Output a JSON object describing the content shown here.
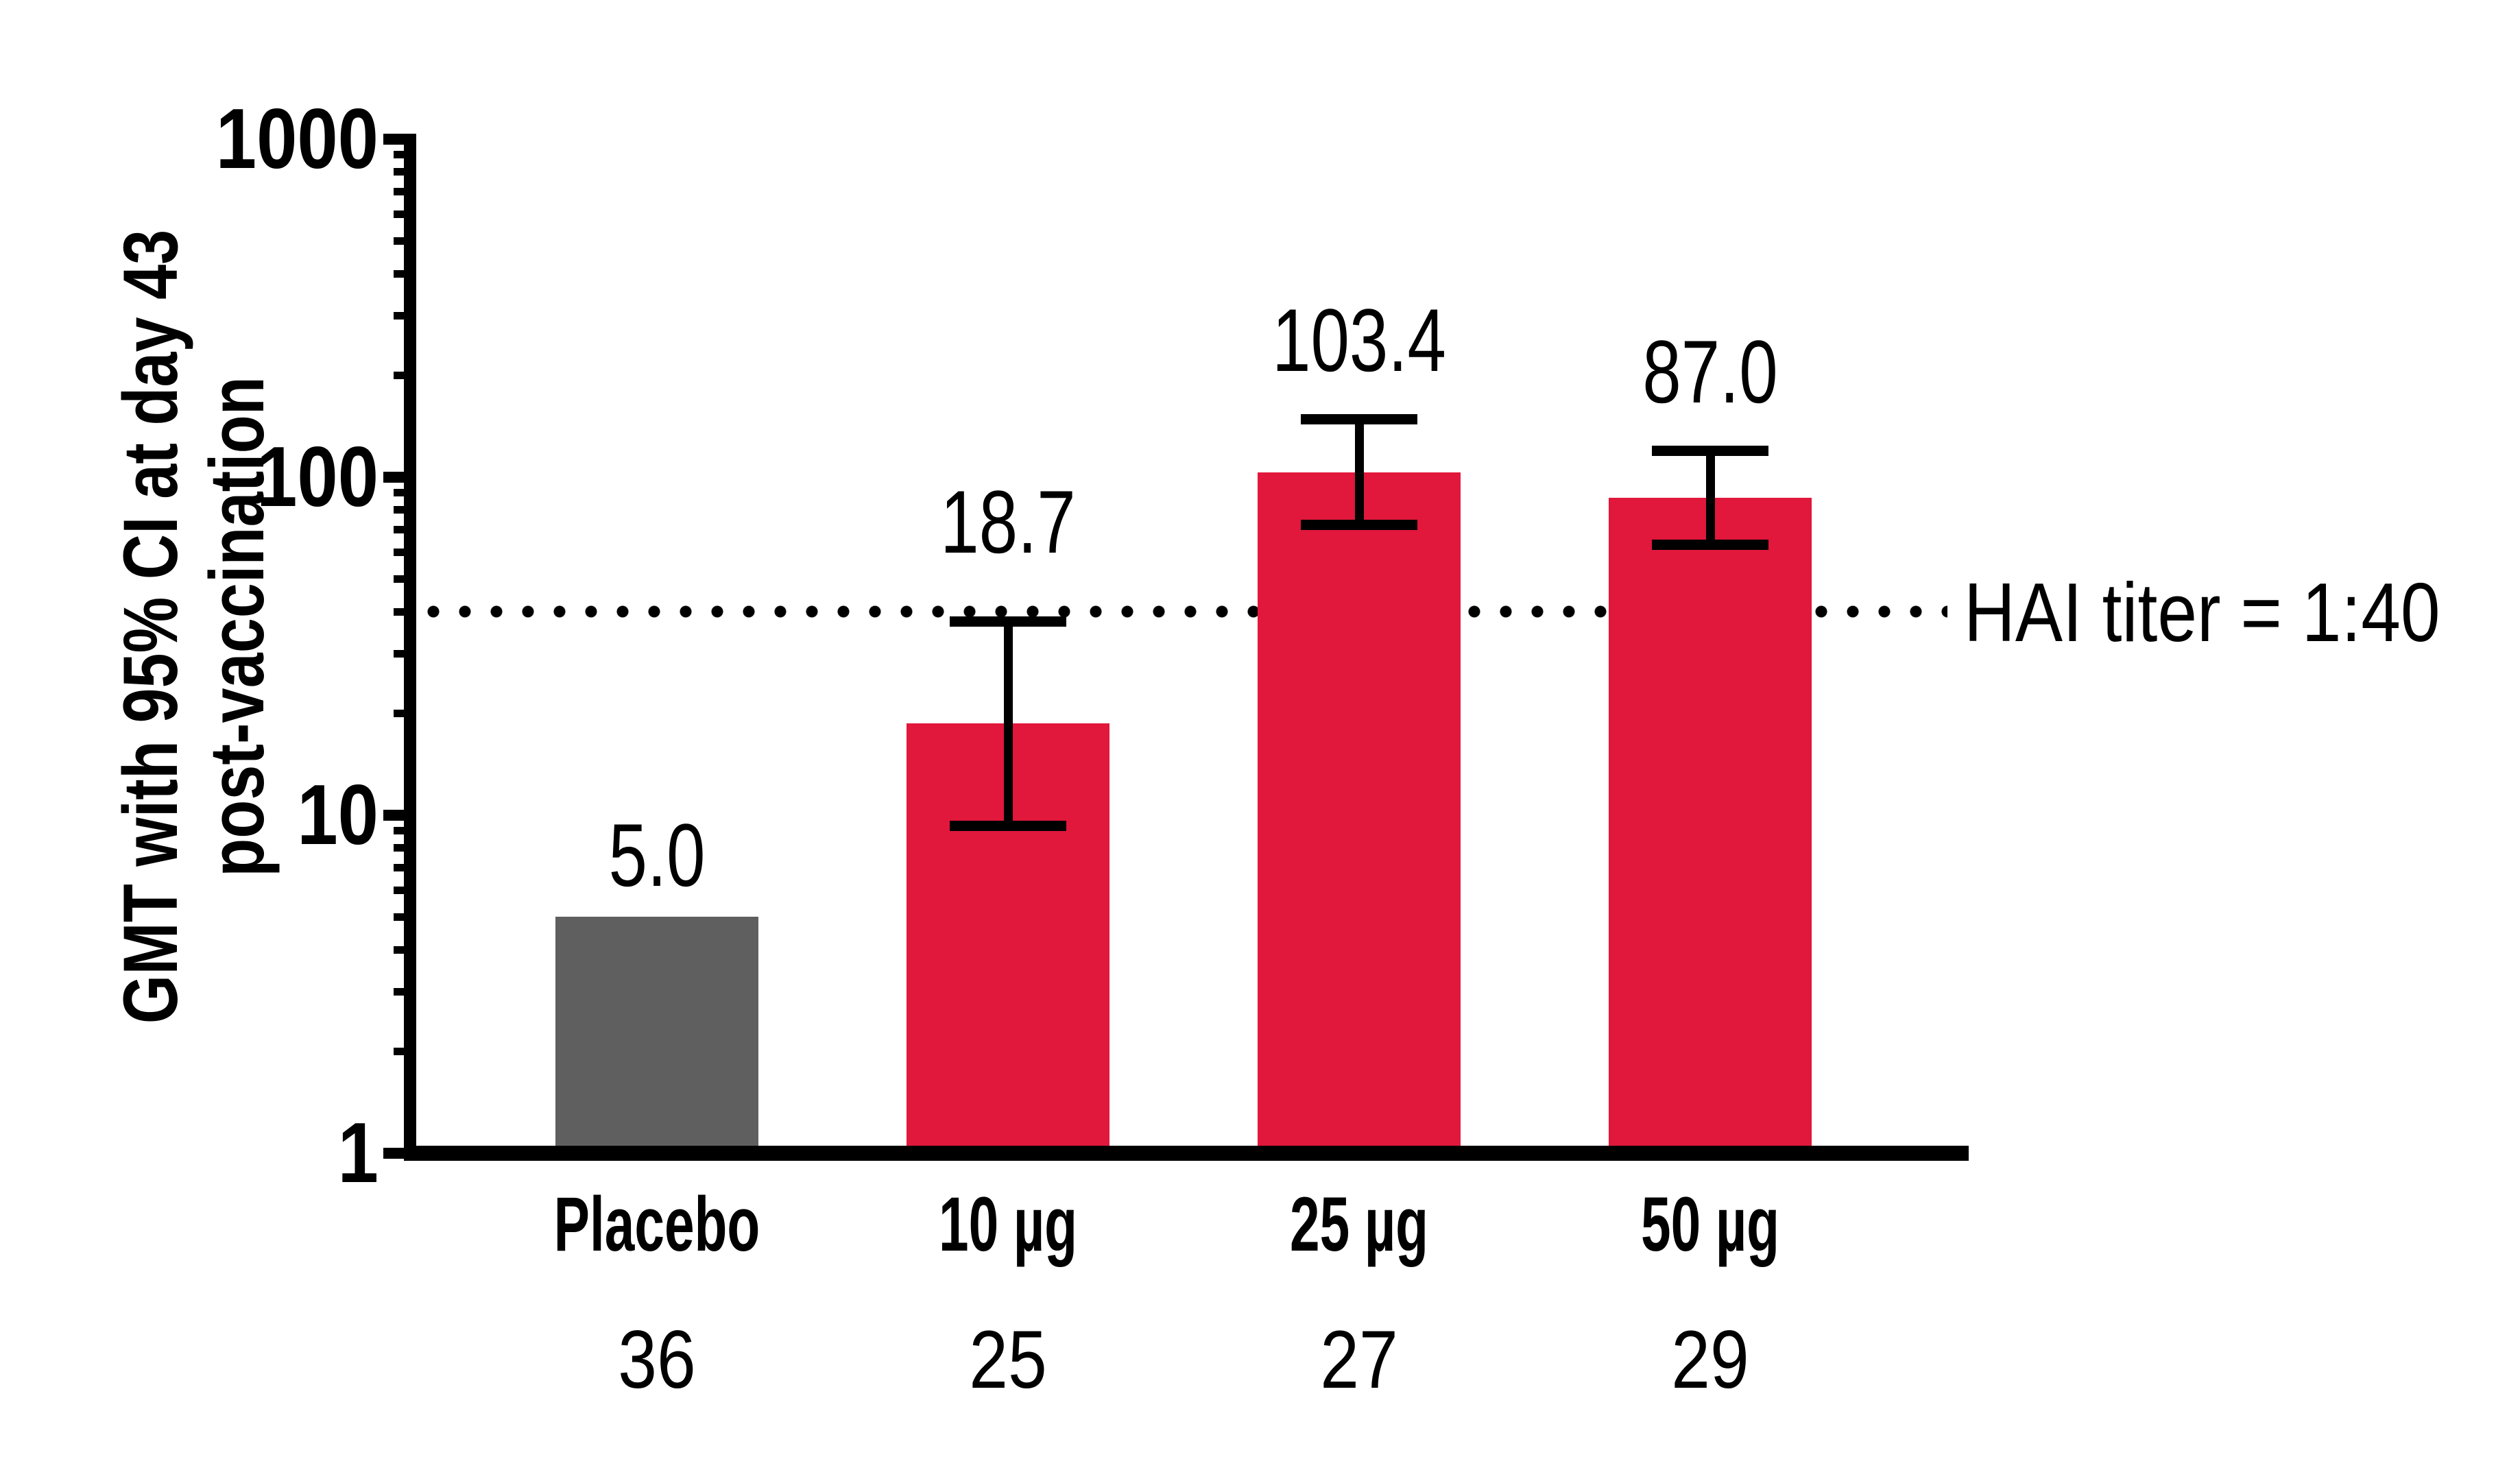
{
  "chart_data": {
    "type": "bar",
    "title": "",
    "yscale": "log",
    "ylim": [
      1,
      1000
    ],
    "ylabel_lines": [
      "GMT with 95% CI at day 43",
      "post-vaccination"
    ],
    "ytick_values": [
      1000,
      100,
      10,
      1
    ],
    "ytick_labels": [
      "1000",
      "100",
      "10",
      "1"
    ],
    "categories": [
      "Placebo",
      "10 µg",
      "25 µg",
      "50 µg"
    ],
    "values": [
      5.0,
      18.7,
      103.4,
      87.0
    ],
    "value_labels": [
      "5.0",
      "18.7",
      "103.4",
      "87.0"
    ],
    "ci_low": [
      null,
      9.3,
      72,
      63
    ],
    "ci_high": [
      null,
      37.5,
      149,
      120
    ],
    "sample_sizes": [
      "36",
      "25",
      "27",
      "29"
    ],
    "bar_colors": [
      "#5F5F5F",
      "#E1173B",
      "#E1173B",
      "#E1173B"
    ],
    "colors": {
      "placebo_gray": "#5F5F5F",
      "vaccine_red": "#E1173B",
      "axis_black": "#000000",
      "background": "#FFFFFF"
    },
    "reference_line": {
      "value": 40,
      "label": "HAI titer = 1:40",
      "style": "dotted"
    },
    "grid": false,
    "legend": null
  }
}
